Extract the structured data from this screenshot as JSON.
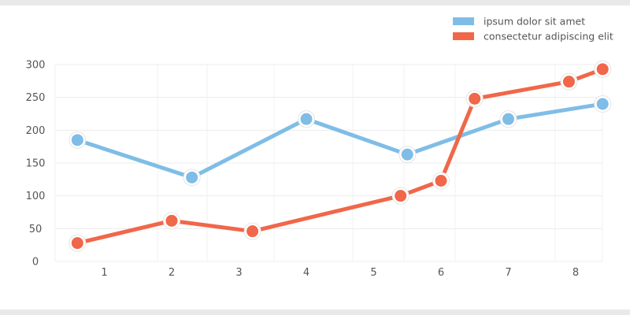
{
  "chart_data": {
    "type": "line",
    "x_ticks": [
      "1",
      "2",
      "3",
      "4",
      "5",
      "6",
      "7",
      "8"
    ],
    "y_ticks": [
      "0",
      "50",
      "100",
      "150",
      "200",
      "250",
      "300"
    ],
    "ylim": [
      0,
      300
    ],
    "xlim": [
      0.5,
      8.4
    ],
    "grid": true,
    "legend_position": "top-right",
    "series": [
      {
        "name": "ipsum dolor sit amet",
        "color": "#7fbde6",
        "points": [
          {
            "x": 0.6,
            "y": 185
          },
          {
            "x": 2.3,
            "y": 128
          },
          {
            "x": 4.0,
            "y": 217
          },
          {
            "x": 5.5,
            "y": 163
          },
          {
            "x": 7.0,
            "y": 217
          },
          {
            "x": 8.4,
            "y": 240
          }
        ]
      },
      {
        "name": "consectetur adipiscing elit",
        "color": "#f0674a",
        "points": [
          {
            "x": 0.6,
            "y": 28
          },
          {
            "x": 2.0,
            "y": 62
          },
          {
            "x": 3.2,
            "y": 46
          },
          {
            "x": 5.4,
            "y": 100
          },
          {
            "x": 6.0,
            "y": 123
          },
          {
            "x": 6.5,
            "y": 248
          },
          {
            "x": 7.9,
            "y": 274
          },
          {
            "x": 8.4,
            "y": 293
          }
        ]
      }
    ]
  }
}
